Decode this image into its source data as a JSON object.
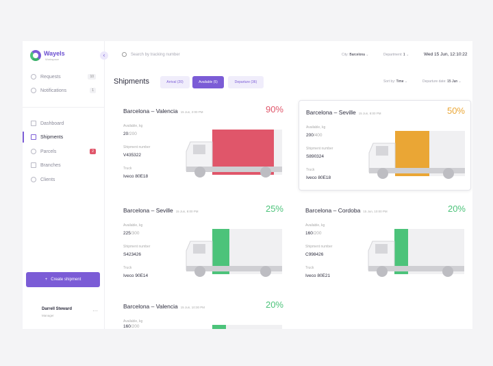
{
  "brand": {
    "name": "Wayels",
    "sub": "Workspace"
  },
  "sidebar": {
    "top": [
      {
        "label": "Requests",
        "badge": "10"
      },
      {
        "label": "Notifications",
        "badge": "1"
      }
    ],
    "items": [
      {
        "label": "Dashboard"
      },
      {
        "label": "Shipments",
        "active": true
      },
      {
        "label": "Parcels",
        "badge": "2"
      },
      {
        "label": "Branches"
      },
      {
        "label": "Clients"
      }
    ],
    "create": "Create shipment",
    "user": {
      "name": "Darrell Steward",
      "role": "Manager"
    }
  },
  "header": {
    "search_placeholder": "Search by tracking number",
    "city_label": "City:",
    "city": "Barcelona",
    "department_label": "Department:",
    "department": "1",
    "datetime": "Wed 15 Jun, 12:10:22"
  },
  "page": {
    "title": "Shipments",
    "tabs": [
      {
        "label": "Arrival (20)"
      },
      {
        "label": "Available (5)",
        "active": true
      },
      {
        "label": "Departure (36)"
      }
    ],
    "sort_label": "Sort by:",
    "sort": "Time",
    "dep_label": "Departure date:",
    "dep": "15 Jun"
  },
  "labels": {
    "available": "Available, kg",
    "number": "Shipment number",
    "truck": "Truck"
  },
  "cards": [
    {
      "route": "Barcelona – Valencia",
      "time": "15 Jun, 2:00 PM",
      "percent": "90%",
      "fill": 0.9,
      "color": "#e0566a",
      "used": "20",
      "total": "/200",
      "number": "V435322",
      "truck": "Iveco 80E18"
    },
    {
      "route": "Barcelona – Seville",
      "time": "15 Jun, 8:00 PM",
      "percent": "50%",
      "fill": 0.5,
      "color": "#eaa635",
      "used": "200",
      "total": "/400",
      "number": "S890324",
      "truck": "Iveco 80E18",
      "selected": true
    },
    {
      "route": "Barcelona – Seville",
      "time": "15 Jun, 8:00 PM",
      "percent": "25%",
      "fill": 0.25,
      "color": "#4cc37a",
      "used": "225",
      "total": "/300",
      "number": "S423426",
      "truck": "Iveco 90E14"
    },
    {
      "route": "Barcelona – Cordoba",
      "time": "15 Jun, 10:00 PM",
      "percent": "20%",
      "fill": 0.2,
      "color": "#4cc37a",
      "used": "160",
      "total": "/200",
      "number": "C998426",
      "truck": "Iveco 80E21"
    },
    {
      "route": "Barcelona – Valencia",
      "time": "15 Jun, 10:30 PM",
      "percent": "20%",
      "fill": 0.2,
      "color": "#4cc37a",
      "used": "160",
      "total": "/200",
      "number": "",
      "truck": ""
    }
  ]
}
